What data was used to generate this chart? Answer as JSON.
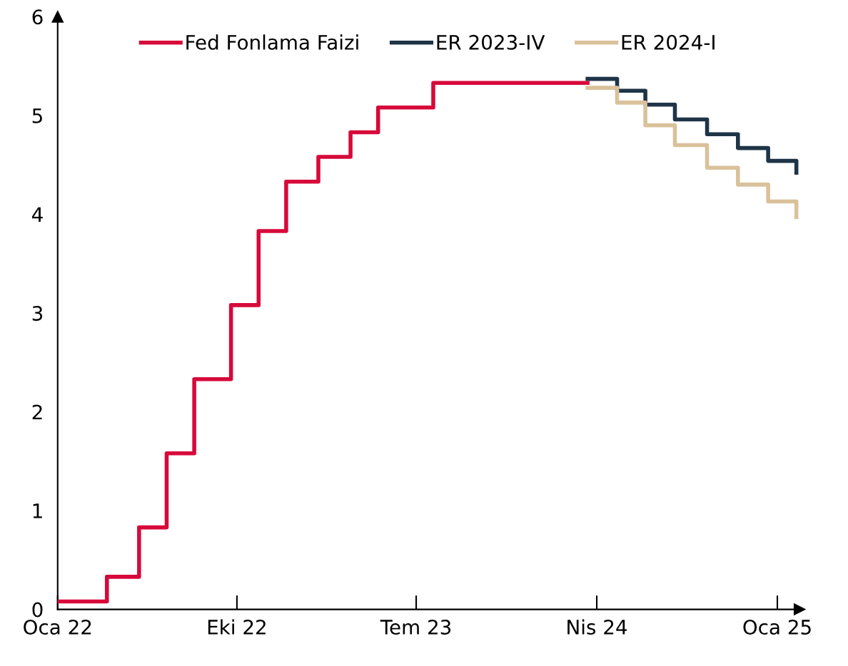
{
  "chart_data": {
    "type": "step",
    "ylim": [
      0,
      6
    ],
    "yticks": [
      0,
      1,
      2,
      3,
      4,
      5,
      6
    ],
    "xlim": [
      "2022-01-01",
      "2025-02-04"
    ],
    "xticks": [
      {
        "value": "2022-01-01",
        "label": "Oca 22"
      },
      {
        "value": "2022-10-01",
        "label": "Eki 22"
      },
      {
        "value": "2023-07-01",
        "label": "Tem 23"
      },
      {
        "value": "2024-04-01",
        "label": "Nis 24"
      },
      {
        "value": "2025-01-01",
        "label": "Oca 25"
      }
    ],
    "grid": false,
    "legend": "top",
    "marker": "none",
    "line_style": "solid",
    "series": [
      {
        "name": "Fed Fonlama Faizi",
        "color": "#d7093a",
        "x": [
          "2022-01-01",
          "2022-03-17",
          "2022-05-05",
          "2022-06-16",
          "2022-07-28",
          "2022-09-22",
          "2022-11-03",
          "2022-12-15",
          "2023-02-02",
          "2023-03-23",
          "2023-05-04",
          "2023-07-27",
          "2024-03-18"
        ],
        "values": [
          0.08,
          0.33,
          0.83,
          1.58,
          2.33,
          3.08,
          3.83,
          4.33,
          4.58,
          4.83,
          5.08,
          5.33,
          5.33
        ]
      },
      {
        "name": "ER 2023-IV",
        "color": "#1f3447",
        "x": [
          "2024-03-18",
          "2024-05-02",
          "2024-06-14",
          "2024-07-29",
          "2024-09-16",
          "2024-11-02",
          "2024-12-18",
          "2025-01-30"
        ],
        "values": [
          5.37,
          5.25,
          5.11,
          4.96,
          4.81,
          4.67,
          4.54,
          4.42
        ]
      },
      {
        "name": "ER 2024-I",
        "color": "#d9c19a",
        "x": [
          "2024-03-18",
          "2024-05-02",
          "2024-06-14",
          "2024-07-29",
          "2024-09-16",
          "2024-11-02",
          "2024-12-18",
          "2025-01-30"
        ],
        "values": [
          5.28,
          5.13,
          4.9,
          4.7,
          4.47,
          4.3,
          4.13,
          3.97
        ]
      }
    ]
  }
}
